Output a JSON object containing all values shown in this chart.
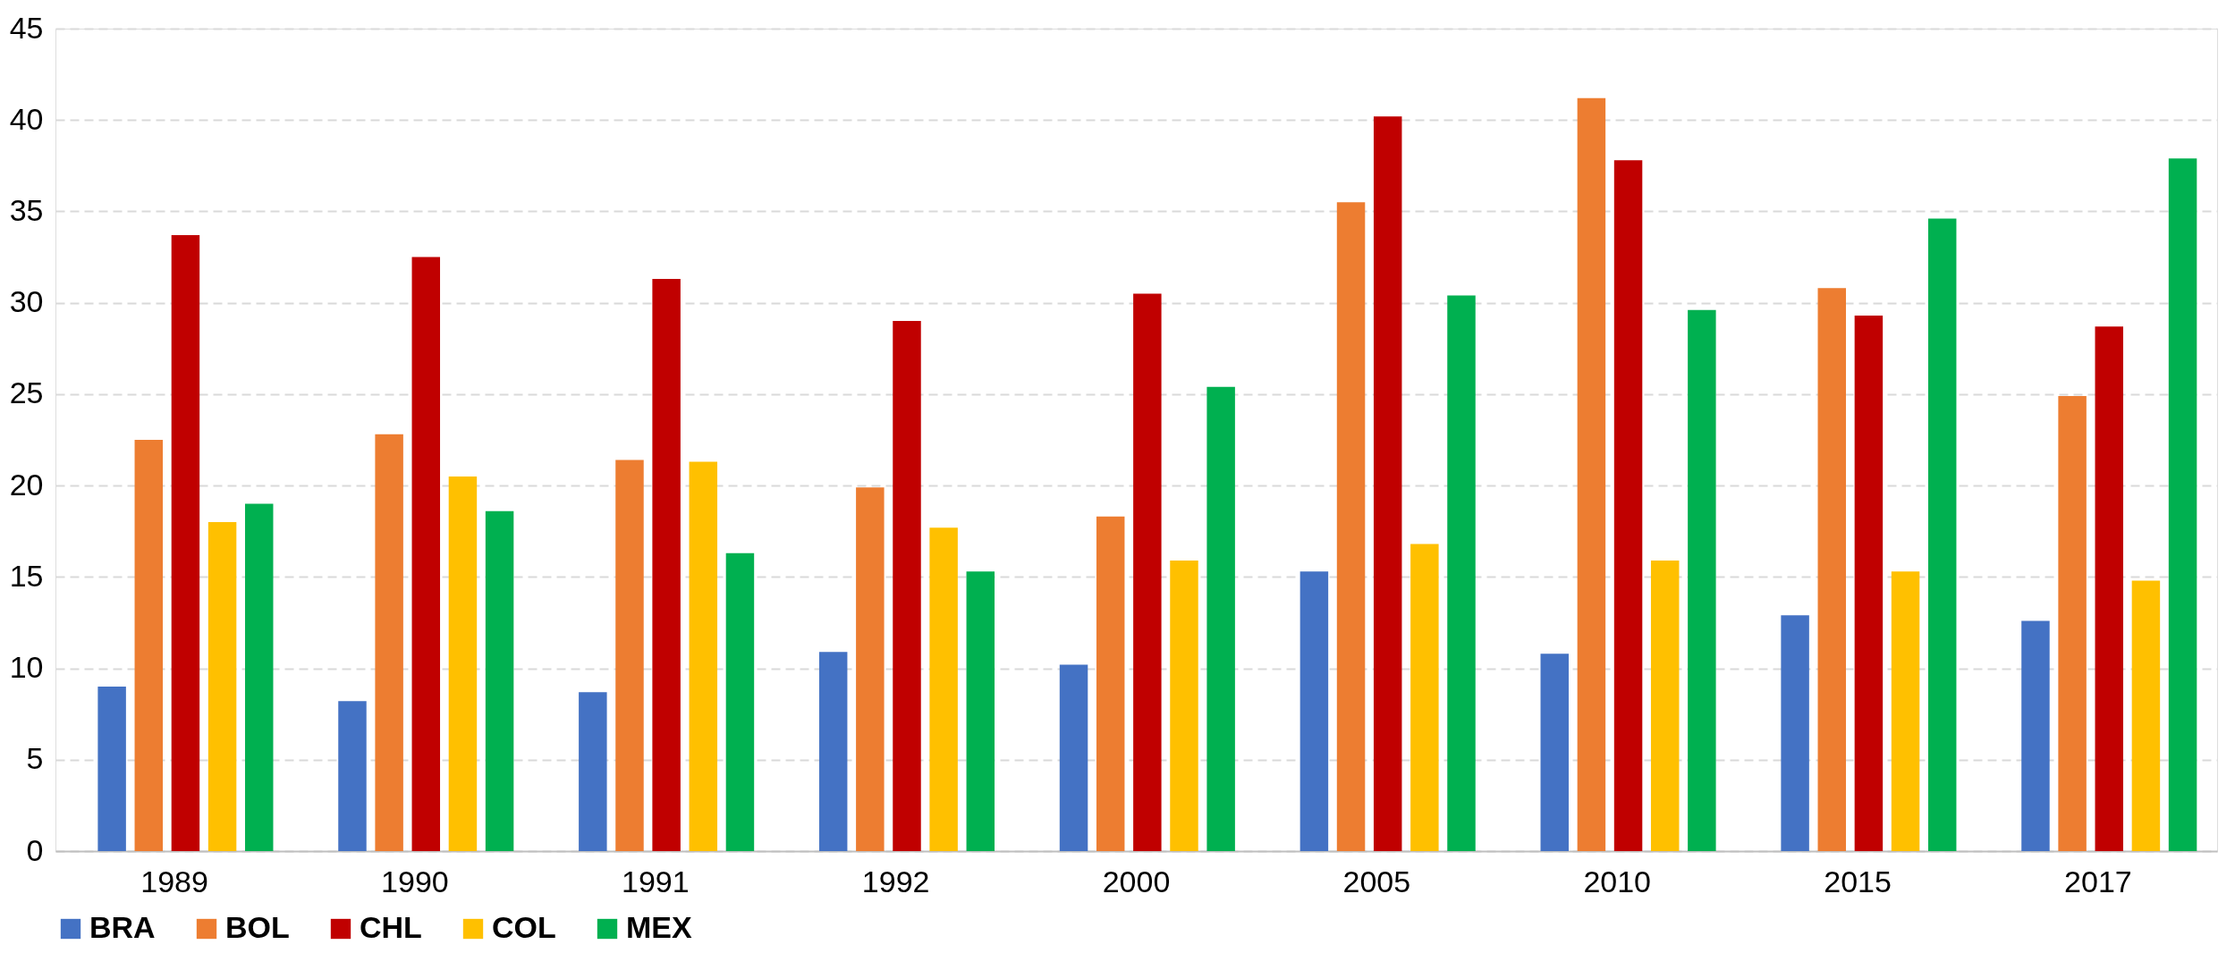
{
  "chart_data": {
    "type": "bar",
    "categories": [
      "1989",
      "1990",
      "1991",
      "1992",
      "2000",
      "2005",
      "2010",
      "2015",
      "2017"
    ],
    "series": [
      {
        "name": "BRA",
        "color": "#4472c4",
        "values": [
          9.0,
          8.2,
          8.7,
          10.9,
          10.2,
          15.3,
          10.8,
          12.9,
          12.6
        ]
      },
      {
        "name": "BOL",
        "color": "#ed7d31",
        "values": [
          22.5,
          22.8,
          21.4,
          19.9,
          18.3,
          35.5,
          41.2,
          30.8,
          24.9
        ]
      },
      {
        "name": "CHL",
        "color": "#c00000",
        "values": [
          33.7,
          32.5,
          31.3,
          29.0,
          30.5,
          40.2,
          37.8,
          29.3,
          28.7
        ]
      },
      {
        "name": "COL",
        "color": "#ffc000",
        "values": [
          18.0,
          20.5,
          21.3,
          17.7,
          15.9,
          16.8,
          15.9,
          15.3,
          14.8
        ]
      },
      {
        "name": "MEX",
        "color": "#00b050",
        "values": [
          19.0,
          18.6,
          16.3,
          15.3,
          25.4,
          30.4,
          29.6,
          34.6,
          37.9
        ]
      }
    ],
    "ylim": [
      0,
      45
    ],
    "yticks": [
      0,
      5,
      10,
      15,
      20,
      25,
      30,
      35,
      40,
      45
    ],
    "grid": "y",
    "legend": "bottom"
  }
}
